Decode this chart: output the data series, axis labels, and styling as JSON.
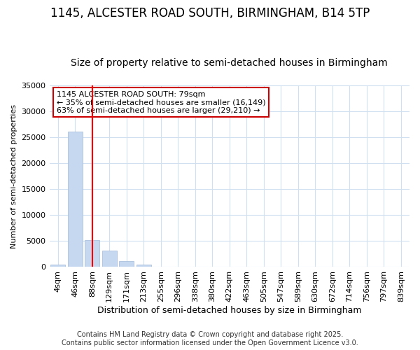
{
  "title": "1145, ALCESTER ROAD SOUTH, BIRMINGHAM, B14 5TP",
  "subtitle": "Size of property relative to semi-detached houses in Birmingham",
  "xlabel": "Distribution of semi-detached houses by size in Birmingham",
  "ylabel": "Number of semi-detached properties",
  "categories": [
    "4sqm",
    "46sqm",
    "88sqm",
    "129sqm",
    "171sqm",
    "213sqm",
    "255sqm",
    "296sqm",
    "338sqm",
    "380sqm",
    "422sqm",
    "463sqm",
    "505sqm",
    "547sqm",
    "589sqm",
    "630sqm",
    "672sqm",
    "714sqm",
    "756sqm",
    "797sqm",
    "839sqm"
  ],
  "values": [
    400,
    26100,
    5200,
    3200,
    1200,
    400,
    100,
    20,
    5,
    2,
    1,
    1,
    1,
    0,
    0,
    0,
    0,
    0,
    0,
    0,
    0
  ],
  "bar_color": "#c5d8f0",
  "bar_edge_color": "#a0b8d8",
  "red_line_x": 2.0,
  "annotation_text": "1145 ALCESTER ROAD SOUTH: 79sqm\n← 35% of semi-detached houses are smaller (16,149)\n63% of semi-detached houses are larger (29,210) →",
  "annotation_box_facecolor": "#ffffff",
  "annotation_box_edgecolor": "#cc0000",
  "ylim": [
    0,
    35000
  ],
  "yticks": [
    0,
    5000,
    10000,
    15000,
    20000,
    25000,
    30000,
    35000
  ],
  "footer_line1": "Contains HM Land Registry data © Crown copyright and database right 2025.",
  "footer_line2": "Contains public sector information licensed under the Open Government Licence v3.0.",
  "background_color": "#ffffff",
  "grid_color": "#d0e0f0",
  "title_fontsize": 12,
  "subtitle_fontsize": 10,
  "xlabel_fontsize": 9,
  "ylabel_fontsize": 8,
  "tick_fontsize": 8,
  "annot_fontsize": 8,
  "footer_fontsize": 7
}
